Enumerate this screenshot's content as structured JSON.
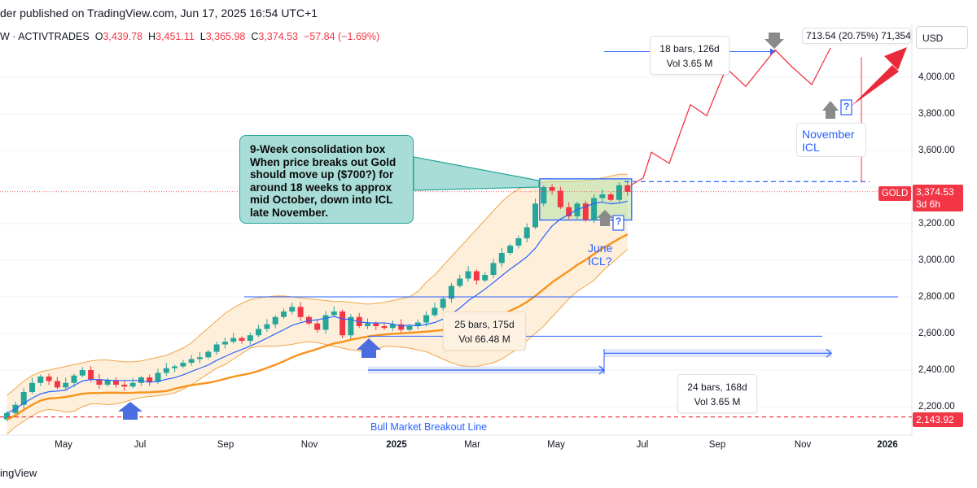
{
  "header": {
    "published": "der published on TradingView.com, Jun 17, 2025 16:54 UTC+1",
    "symbol": "W · ACTIVTRADES",
    "o_label": "O",
    "o_val": "3,439.78",
    "h_label": "H",
    "h_val": "3,451.11",
    "l_label": "L",
    "l_val": "3,365.98",
    "c_label": "C",
    "c_val": "3,374.53",
    "change": "−57.84 (−1.69%)"
  },
  "footer": "ingView",
  "currency": "USD",
  "gold_tag": "GOLD",
  "price_tag": {
    "price": "3,374.53",
    "countdown": "3d 6h"
  },
  "breakout_tag": "2,143.92",
  "breakout_label": "Bull Market Breakout Line",
  "note_text": "9-Week consolidation box When price breaks out Gold should move up ($700?) for around 18 weeks to approx mid October, down into ICL late November.",
  "callouts": {
    "c1_line1": "18 bars, 126d",
    "c1_line2": "Vol 3.65 M",
    "c2_line1": "25 bars, 175d",
    "c2_line2": "Vol 66.48 M",
    "c3_line1": "24 bars, 168d",
    "c3_line2": "Vol 3.65 M"
  },
  "top_measure": "713.54 (20.75%) 71,354",
  "june_icl": "June ICL?",
  "nov_icl_1": "November",
  "nov_icl_2": "ICL",
  "question_mark": "?",
  "colors": {
    "up": "#26a69a",
    "down": "#f23645",
    "accent": "#2962ff",
    "orange": "#f7931a"
  },
  "chart_data": {
    "type": "candlestick",
    "timeframe": "weekly",
    "y_ticks": [
      "4,000.00",
      "3,800.00",
      "3,600.00",
      "3,400.00",
      "3,200.00",
      "3,000.00",
      "2,800.00",
      "2,600.00",
      "2,400.00",
      "2,200.00"
    ],
    "x_ticks": [
      "May",
      "Jul",
      "Sep",
      "Nov",
      "2025",
      "Mar",
      "May",
      "Jul",
      "Sep",
      "Nov",
      "2026"
    ],
    "ylim": [
      2080,
      4260
    ],
    "close": [
      2165,
      2210,
      2280,
      2330,
      2365,
      2340,
      2305,
      2330,
      2370,
      2400,
      2350,
      2320,
      2345,
      2320,
      2310,
      2330,
      2360,
      2335,
      2385,
      2410,
      2420,
      2440,
      2460,
      2470,
      2500,
      2540,
      2555,
      2575,
      2560,
      2590,
      2625,
      2650,
      2690,
      2720,
      2745,
      2690,
      2655,
      2620,
      2700,
      2720,
      2590,
      2690,
      2640,
      2655,
      2640,
      2630,
      2650,
      2620,
      2640,
      2660,
      2700,
      2740,
      2790,
      2860,
      2900,
      2940,
      2890,
      2920,
      2985,
      3040,
      3080,
      3120,
      3180,
      3310,
      3400,
      3380,
      3290,
      3240,
      3310,
      3220,
      3340,
      3360,
      3330,
      3410,
      3374
    ],
    "upper_band": [
      2262,
      2300,
      2340,
      2370,
      2390,
      2400,
      2410,
      2420,
      2430,
      2440,
      2450,
      2455,
      2455,
      2450,
      2445,
      2445,
      2450,
      2460,
      2470,
      2480,
      2500,
      2520,
      2550,
      2590,
      2630,
      2670,
      2710,
      2740,
      2765,
      2785,
      2795,
      2800,
      2805,
      2805,
      2800,
      2795,
      2790,
      2785,
      2780,
      2775,
      2775,
      2770,
      2765,
      2760,
      2765,
      2770,
      2780,
      2790,
      2800,
      2830,
      2880,
      2920,
      2970,
      3020,
      3070,
      3120,
      3170,
      3220,
      3270,
      3320,
      3360,
      3390,
      3410,
      3420,
      3425,
      3430,
      3430,
      3430,
      3430,
      3435,
      3440,
      3450,
      3460,
      3470,
      3470
    ],
    "lower_band": [
      2050,
      2090,
      2120,
      2150,
      2175,
      2185,
      2180,
      2170,
      2175,
      2200,
      2215,
      2215,
      2210,
      2215,
      2225,
      2240,
      2250,
      2255,
      2260,
      2265,
      2275,
      2295,
      2320,
      2350,
      2380,
      2410,
      2430,
      2460,
      2490,
      2520,
      2530,
      2530,
      2530,
      2535,
      2540,
      2550,
      2555,
      2550,
      2540,
      2530,
      2520,
      2510,
      2505,
      2500,
      2510,
      2530,
      2530,
      2525,
      2520,
      2510,
      2500,
      2480,
      2460,
      2440,
      2425,
      2420,
      2420,
      2430,
      2440,
      2460,
      2490,
      2520,
      2560,
      2600,
      2640,
      2690,
      2740,
      2790,
      2830,
      2860,
      2890,
      2940,
      2980,
      3020,
      3060
    ],
    "projection": [
      3410,
      3450,
      3590,
      3530,
      3850,
      3790,
      4050,
      3950,
      4150,
      4060,
      3960,
      4160,
      4020,
      3920
    ],
    "series": [
      {
        "name": "GOLD"
      }
    ]
  }
}
